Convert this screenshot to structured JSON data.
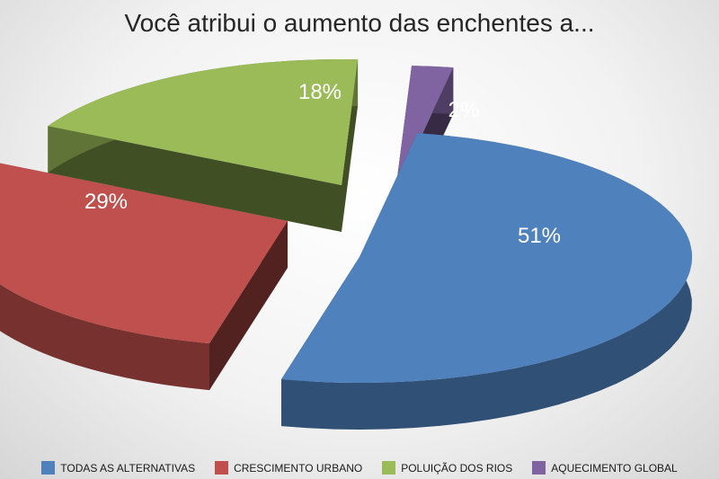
{
  "chart_data": {
    "type": "pie",
    "title": "Você atribui o aumento das enchentes a...",
    "legend_position": "bottom",
    "categories": [
      "TODAS AS ALTERNATIVAS",
      "CRESCIMENTO URBANO",
      "POLUIÇÃO DOS RIOS",
      "AQUECIMENTO GLOBAL"
    ],
    "values": [
      51,
      29,
      18,
      2
    ],
    "labels": [
      "51%",
      "29%",
      "18%",
      "2%"
    ],
    "colors": [
      "#4f81bd",
      "#c0504d",
      "#9bbb59",
      "#8064a2"
    ],
    "exploded": true,
    "three_d": true
  }
}
